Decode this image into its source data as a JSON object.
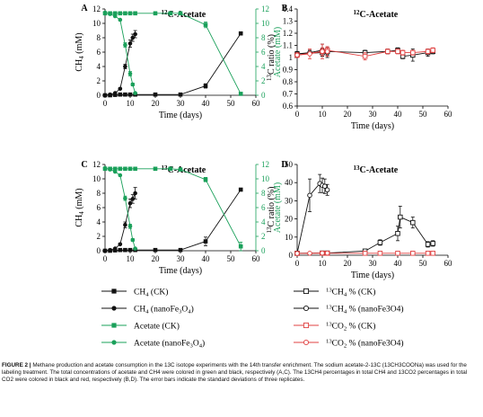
{
  "colors": {
    "ch4": "#111111",
    "acetate": "#1aa05a",
    "co2": "#e04040",
    "grid": "#000000"
  },
  "panels": [
    {
      "key": "A",
      "letter": "A",
      "title_sup": "12",
      "title_rest": "C-Acetate",
      "xlabel": "Time (days)",
      "ylabel_left": "CH4 (mM)",
      "ylabel_right": "Acetate (mM)",
      "xlim": [
        0,
        60
      ],
      "xticks": [
        "0",
        "10",
        "20",
        "30",
        "40",
        "50",
        "60"
      ],
      "ylim_left": [
        0,
        12
      ],
      "yticks_left": [
        "0",
        "2",
        "4",
        "6",
        "8",
        "10",
        "12"
      ],
      "ylim_right": [
        0,
        12
      ],
      "yticks_right": [
        "0",
        "2",
        "4",
        "6",
        "8",
        "10",
        "12"
      ]
    },
    {
      "key": "B",
      "letter": "B",
      "title_sup": "12",
      "title_rest": "C-Acetate",
      "xlabel": "Time (days)",
      "ylabel_left": "13C ratio (%)",
      "xlim": [
        0,
        60
      ],
      "xticks": [
        "0",
        "10",
        "20",
        "30",
        "40",
        "50",
        "60"
      ],
      "ylim_left": [
        0.6,
        1.4
      ],
      "yticks_left": [
        "0.6",
        "0.7",
        "0.8",
        "0.9",
        "1",
        "1.1",
        "1.2",
        "1.3",
        "1.4"
      ]
    },
    {
      "key": "C",
      "letter": "C",
      "title_sup": "13",
      "title_rest": "C-Acetate",
      "xlabel": "Time (days)",
      "ylabel_left": "CH4 (mM)",
      "ylabel_right": "Acetate (mM)",
      "xlim": [
        0,
        60
      ],
      "xticks": [
        "0",
        "10",
        "20",
        "30",
        "40",
        "50",
        "60"
      ],
      "ylim_left": [
        0,
        12
      ],
      "yticks_left": [
        "0",
        "2",
        "4",
        "6",
        "8",
        "10",
        "12"
      ],
      "ylim_right": [
        0,
        12
      ],
      "yticks_right": [
        "0",
        "2",
        "4",
        "6",
        "8",
        "10",
        "12"
      ]
    },
    {
      "key": "D",
      "letter": "D",
      "title_sup": "13",
      "title_rest": "C-Acetate",
      "xlabel": "Time (days)",
      "ylabel_left": "13C ratio (%)",
      "xlim": [
        0,
        60
      ],
      "xticks": [
        "0",
        "10",
        "20",
        "30",
        "40",
        "50",
        "60"
      ],
      "ylim_left": [
        0,
        50
      ],
      "yticks_left": [
        "0",
        "10",
        "20",
        "30",
        "40",
        "50"
      ]
    }
  ],
  "legend_left": [
    {
      "label": "CH4 (CK)",
      "series": "ch4_ck"
    },
    {
      "label": "CH4 (nanoFe3O4)",
      "series": "ch4_nano"
    },
    {
      "label": "Acetate (CK)",
      "series": "ac_ck"
    },
    {
      "label": "Acetate (nanoFe3O4)",
      "series": "ac_nano"
    }
  ],
  "legend_right": [
    {
      "label": "13CH4 % (CK)",
      "series": "ch4pct_ck"
    },
    {
      "label": "13CH4 % (nanoFe3O4)",
      "series": "ch4pct_nano"
    },
    {
      "label": "13CO2 % (CK)",
      "series": "co2pct_ck"
    },
    {
      "label": "13CO2 % (nanoFe3O4)",
      "series": "co2pct_nano"
    }
  ],
  "caption": {
    "label": "FIGURE 2 |",
    "text": "Methane production and acetate consumption in the 13C isotope experiments with the 14th transfer enrichment. The sodium acetate-2-13C (13CH3COONa) was used for the labeling treatment. The total concentrations of acetate and CH4 were colored in green and black, respectively (A,C). The 13CH4 percentages in total CH4 and 13CO2 percentages in total CO2 were colored in black and red, respectively (B,D). The error bars indicate the standard deviations of three replicates."
  },
  "chart_data": [
    {
      "panel": "A",
      "type": "line",
      "title": "12C-Acetate",
      "xlabel": "Time (days)",
      "ylabel": "CH4 (mM)",
      "ylabel_right": "Acetate (mM)",
      "xlim": [
        0,
        60
      ],
      "ylim": [
        0,
        12
      ],
      "ylim_right": [
        0,
        12
      ],
      "grid": false,
      "series": [
        {
          "name": "CH4 (CK)",
          "axis": "left",
          "marker": "filled-square",
          "color": "#111111",
          "x": [
            0,
            2,
            4,
            6,
            8,
            10,
            12,
            20,
            30,
            40,
            54
          ],
          "y": [
            0,
            0,
            0.05,
            0.1,
            0.1,
            0.1,
            0.1,
            0.1,
            0.1,
            1.3,
            8.6
          ],
          "err": [
            0,
            0,
            0,
            0,
            0,
            0,
            0,
            0,
            0,
            0.3,
            0.2
          ]
        },
        {
          "name": "CH4 (nanoFe3O4)",
          "axis": "left",
          "marker": "filled-circle",
          "color": "#111111",
          "x": [
            0,
            2,
            4,
            6,
            8,
            10,
            11,
            12
          ],
          "y": [
            0,
            0.1,
            0.3,
            0.9,
            4.0,
            7.2,
            8.0,
            8.5
          ],
          "err": [
            0,
            0,
            0.1,
            0.1,
            0.3,
            0.5,
            0.5,
            0.5
          ]
        },
        {
          "name": "Acetate (CK)",
          "axis": "right",
          "marker": "filled-square",
          "color": "#1aa05a",
          "x": [
            0,
            2,
            4,
            6,
            8,
            10,
            12,
            20,
            26,
            30,
            40,
            54
          ],
          "y": [
            11.4,
            11.4,
            11.4,
            11.4,
            11.4,
            11.4,
            11.4,
            11.4,
            11.4,
            11.4,
            9.8,
            0.2
          ],
          "err": [
            0,
            0,
            0,
            0,
            0,
            0,
            0,
            0,
            0,
            0,
            0.4,
            0.1
          ]
        },
        {
          "name": "Acetate (nanoFe3O4)",
          "axis": "right",
          "marker": "filled-circle",
          "color": "#1aa05a",
          "x": [
            0,
            2,
            4,
            6,
            8,
            10,
            11,
            12
          ],
          "y": [
            11.5,
            11.3,
            11.0,
            10.5,
            7.0,
            3.0,
            1.5,
            0.3
          ],
          "err": [
            0,
            0,
            0,
            0,
            0.3,
            0.3,
            0.2,
            0
          ]
        }
      ]
    },
    {
      "panel": "B",
      "type": "line",
      "title": "12C-Acetate",
      "xlabel": "Time (days)",
      "ylabel": "13C ratio (%)",
      "xlim": [
        0,
        60
      ],
      "ylim": [
        0.6,
        1.4
      ],
      "grid": false,
      "series": [
        {
          "name": "13CH4 % (CK)",
          "marker": "open-square",
          "color": "#111111",
          "x": [
            0,
            10,
            12,
            27,
            36,
            40,
            42,
            46,
            52,
            54
          ],
          "y": [
            1.03,
            1.04,
            1.05,
            1.04,
            1.05,
            1.06,
            1.01,
            1.02,
            1.04,
            1.05
          ],
          "err": [
            0.02,
            0.03,
            0.03,
            0.02,
            0.02,
            0.02,
            0.02,
            0.05,
            0.03,
            0.02
          ]
        },
        {
          "name": "13CH4 % (nanoFe3O4)",
          "marker": "open-circle",
          "color": "#111111",
          "x": [
            0,
            5,
            10,
            12
          ],
          "y": [
            1.03,
            1.04,
            1.06,
            1.04
          ],
          "err": [
            0.01,
            0.02,
            0.05,
            0.04
          ]
        },
        {
          "name": "13CO2 % (CK)",
          "marker": "open-square",
          "color": "#e04040",
          "x": [
            0,
            10,
            12,
            27,
            36,
            40,
            42,
            46,
            52,
            54
          ],
          "y": [
            1.02,
            1.05,
            1.06,
            1.01,
            1.05,
            1.05,
            1.04,
            1.04,
            1.05,
            1.06
          ],
          "err": [
            0.02,
            0.03,
            0.02,
            0.03,
            0.02,
            0.02,
            0.02,
            0.02,
            0.02,
            0.02
          ]
        },
        {
          "name": "13CO2 % (nanoFe3O4)",
          "marker": "open-circle",
          "color": "#e04040",
          "x": [
            0,
            5,
            10,
            12
          ],
          "y": [
            1.02,
            1.03,
            1.05,
            1.05
          ],
          "err": [
            0.01,
            0.04,
            0.06,
            0.04
          ]
        }
      ]
    },
    {
      "panel": "C",
      "type": "line",
      "title": "13C-Acetate",
      "xlabel": "Time (days)",
      "ylabel": "CH4 (mM)",
      "ylabel_right": "Acetate (mM)",
      "xlim": [
        0,
        60
      ],
      "ylim": [
        0,
        12
      ],
      "ylim_right": [
        0,
        12
      ],
      "grid": false,
      "series": [
        {
          "name": "CH4 (CK)",
          "axis": "left",
          "marker": "filled-square",
          "color": "#111111",
          "x": [
            0,
            2,
            4,
            6,
            8,
            10,
            12,
            20,
            30,
            40,
            54
          ],
          "y": [
            0,
            0,
            0.05,
            0.1,
            0.1,
            0.1,
            0.1,
            0.1,
            0.1,
            1.3,
            8.5
          ],
          "err": [
            0,
            0,
            0,
            0,
            0,
            0,
            0,
            0,
            0,
            0.6,
            0.2
          ]
        },
        {
          "name": "CH4 (nanoFe3O4)",
          "axis": "left",
          "marker": "filled-circle",
          "color": "#111111",
          "x": [
            0,
            2,
            4,
            6,
            8,
            10,
            11,
            12
          ],
          "y": [
            0,
            0.1,
            0.3,
            0.9,
            3.6,
            6.6,
            7.2,
            8.0
          ],
          "err": [
            0,
            0,
            0.1,
            0.1,
            0.4,
            0.6,
            0.6,
            0.8
          ]
        },
        {
          "name": "Acetate (CK)",
          "axis": "right",
          "marker": "filled-square",
          "color": "#1aa05a",
          "x": [
            0,
            2,
            4,
            6,
            8,
            10,
            12,
            20,
            26,
            30,
            40,
            54
          ],
          "y": [
            11.4,
            11.4,
            11.4,
            11.4,
            11.4,
            11.4,
            11.4,
            11.4,
            11.4,
            11.3,
            9.9,
            0.6
          ],
          "err": [
            0,
            0,
            0,
            0,
            0,
            0,
            0,
            0,
            0,
            0,
            0.3,
            0.6
          ]
        },
        {
          "name": "Acetate (nanoFe3O4)",
          "axis": "right",
          "marker": "filled-circle",
          "color": "#1aa05a",
          "x": [
            0,
            2,
            4,
            6,
            8,
            10,
            11,
            12
          ],
          "y": [
            11.5,
            11.3,
            11.0,
            10.5,
            7.3,
            3.4,
            1.5,
            0.3
          ],
          "err": [
            0,
            0,
            0,
            0,
            0.3,
            0.3,
            0.2,
            0
          ]
        }
      ]
    },
    {
      "panel": "D",
      "type": "line",
      "title": "13C-Acetate",
      "xlabel": "Time (days)",
      "ylabel": "13C ratio (%)",
      "xlim": [
        0,
        60
      ],
      "ylim": [
        0,
        50
      ],
      "grid": false,
      "series": [
        {
          "name": "13CH4 % (CK)",
          "marker": "open-square",
          "color": "#111111",
          "x": [
            0,
            10,
            12,
            27,
            33,
            40,
            41,
            46,
            52,
            54
          ],
          "y": [
            1.1,
            1.2,
            1.2,
            2.3,
            7.0,
            12.0,
            21.0,
            18.0,
            6.0,
            6.5
          ],
          "err": [
            0.2,
            0.2,
            0.2,
            0.4,
            1.5,
            4.0,
            6.0,
            3.0,
            1.5,
            1.5
          ]
        },
        {
          "name": "13CH4 % (nanoFe3O4)",
          "marker": "open-circle",
          "color": "#111111",
          "x": [
            0,
            5,
            9,
            10,
            11,
            12
          ],
          "y": [
            1.1,
            33.0,
            39.5,
            38.5,
            38.0,
            36.0
          ],
          "err": [
            0.2,
            9.0,
            5.0,
            4.0,
            4.0,
            3.0
          ]
        },
        {
          "name": "13CO2 % (CK)",
          "marker": "open-square",
          "color": "#e04040",
          "x": [
            0,
            10,
            12,
            27,
            33,
            40,
            46,
            52,
            54
          ],
          "y": [
            1.0,
            1.1,
            1.1,
            1.1,
            1.1,
            1.1,
            1.1,
            1.1,
            1.1
          ],
          "err": [
            0,
            0,
            0,
            0,
            0,
            0,
            0,
            0,
            0
          ]
        },
        {
          "name": "13CO2 % (nanoFe3O4)",
          "marker": "open-circle",
          "color": "#e04040",
          "x": [
            0,
            5,
            10,
            12
          ],
          "y": [
            1.0,
            1.1,
            1.2,
            1.2
          ],
          "err": [
            0,
            0,
            0.1,
            0.1
          ]
        }
      ]
    }
  ]
}
